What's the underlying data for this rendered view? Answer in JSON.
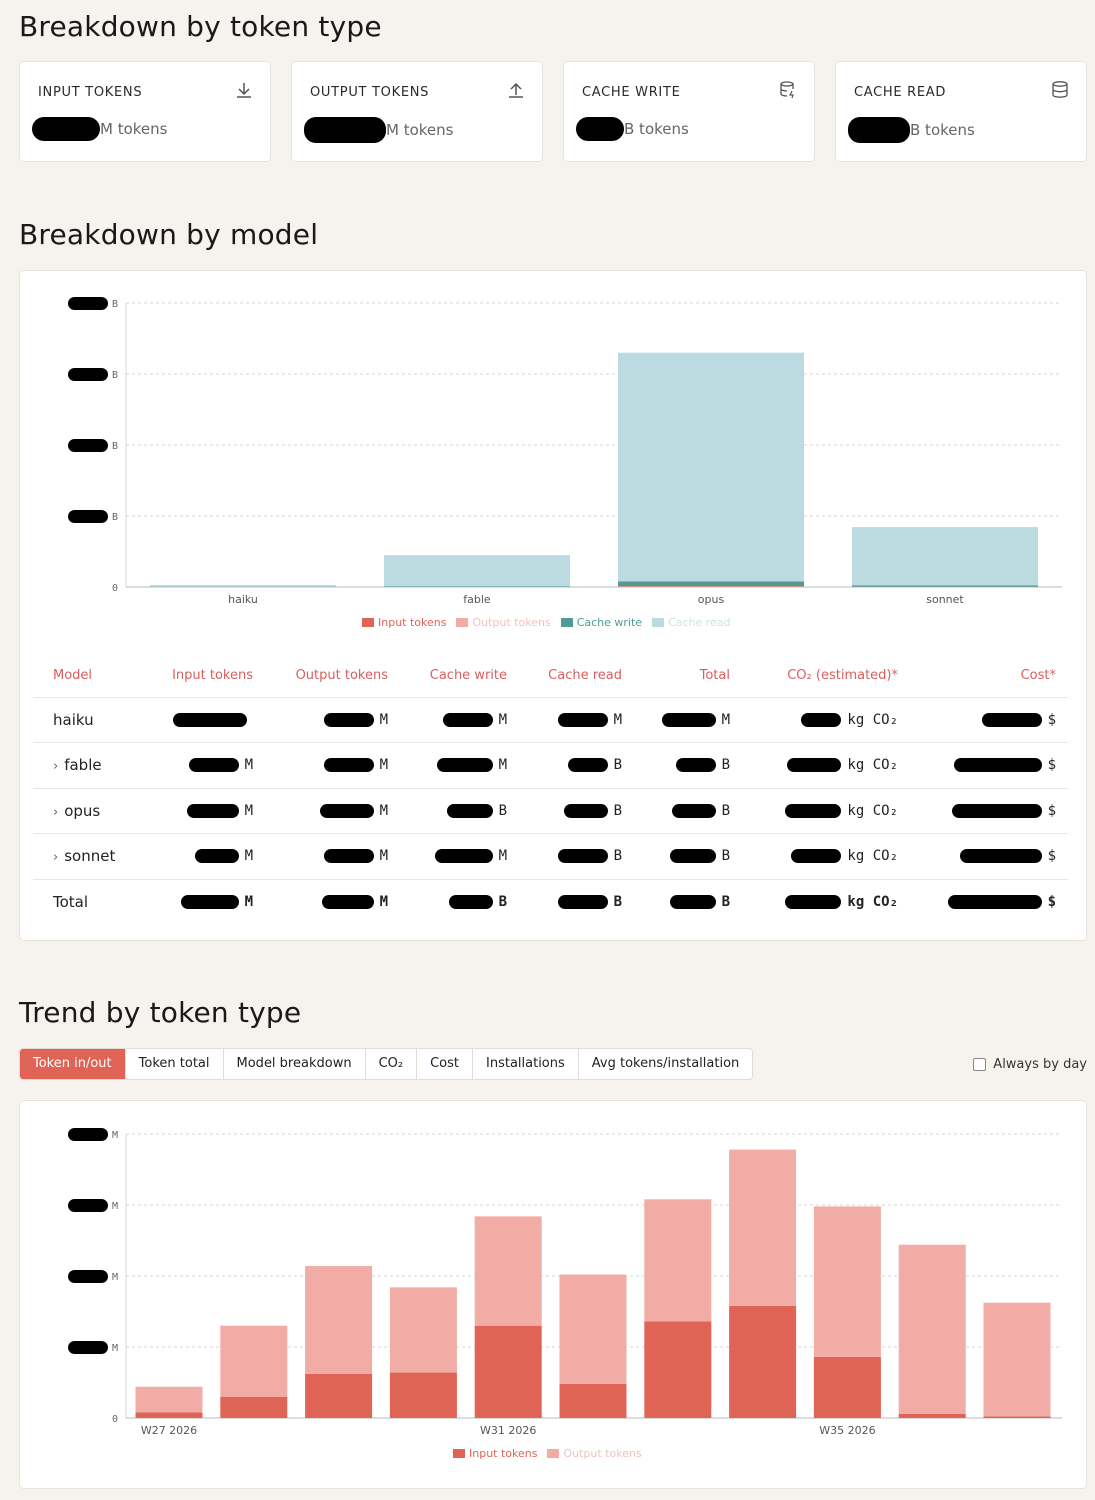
{
  "token_section": {
    "title": "Breakdown by token type",
    "cards": [
      {
        "label": "INPUT TOKENS",
        "unit": "M tokens",
        "icon": "download-icon"
      },
      {
        "label": "OUTPUT TOKENS",
        "unit": "M tokens",
        "icon": "upload-icon"
      },
      {
        "label": "CACHE WRITE",
        "unit": "B tokens",
        "icon": "database-write-icon"
      },
      {
        "label": "CACHE READ",
        "unit": "B tokens",
        "icon": "database-icon"
      }
    ]
  },
  "model_section": {
    "title": "Breakdown by model",
    "chart_data": {
      "type": "bar",
      "stacked": true,
      "categories": [
        "haiku",
        "fable",
        "opus",
        "sonnet"
      ],
      "y_ticks": [
        "B",
        "B",
        "B",
        "B",
        "0"
      ],
      "ylim": [
        0,
        1
      ],
      "grid": true,
      "legend_position": "bottom",
      "series": [
        {
          "name": "Input tokens",
          "color": "#e06456",
          "values": [
            0,
            0,
            0.0015,
            0.0005
          ]
        },
        {
          "name": "Output tokens",
          "color": "#f2aca6",
          "values": [
            0,
            0,
            0.0015,
            0.0005
          ]
        },
        {
          "name": "Cache write",
          "color": "#4e9c95",
          "values": [
            0.001,
            0.002,
            0.017,
            0.005
          ]
        },
        {
          "name": "Cache read",
          "color": "#bcdbe0",
          "values": [
            0.006,
            0.11,
            0.805,
            0.205
          ]
        }
      ]
    },
    "table": {
      "headers": [
        "Model",
        "Input tokens",
        "Output tokens",
        "Cache write",
        "Cache read",
        "Total",
        "CO₂ (estimated)*",
        "Cost*"
      ],
      "rows": [
        {
          "name": "haiku",
          "expandable": false,
          "units": [
            "",
            "M",
            "M",
            "M",
            "M",
            "kg CO₂",
            "$"
          ]
        },
        {
          "name": "fable",
          "expandable": true,
          "units": [
            "M",
            "M",
            "M",
            "B",
            "B",
            "kg CO₂",
            "$"
          ]
        },
        {
          "name": "opus",
          "expandable": true,
          "units": [
            "M",
            "M",
            "B",
            "B",
            "B",
            "kg CO₂",
            "$"
          ]
        },
        {
          "name": "sonnet",
          "expandable": true,
          "units": [
            "M",
            "M",
            "M",
            "B",
            "B",
            "kg CO₂",
            "$"
          ]
        }
      ],
      "total": {
        "name": "Total",
        "units": [
          "M",
          "M",
          "B",
          "B",
          "B",
          "kg CO₂",
          "$"
        ]
      }
    }
  },
  "trend_section": {
    "title": "Trend by token type",
    "tabs": [
      "Token in/out",
      "Token total",
      "Model breakdown",
      "CO₂",
      "Cost",
      "Installations",
      "Avg tokens/installation"
    ],
    "active_tab": "Token in/out",
    "always_by_day": "Always by day",
    "chart_data": {
      "type": "bar",
      "stacked": true,
      "x_labels": [
        "W27 2026",
        "W31 2026",
        "W35 2026"
      ],
      "x_label_positions": [
        0,
        4,
        8
      ],
      "y_ticks": [
        "M",
        "M",
        "M",
        "M",
        "0"
      ],
      "ylim": [
        0,
        1
      ],
      "grid": true,
      "legend_position": "bottom",
      "series": [
        {
          "name": "Input tokens",
          "color": "#e06456",
          "values": [
            0.02,
            0.075,
            0.155,
            0.16,
            0.325,
            0.12,
            0.34,
            0.395,
            0.215,
            0.015,
            0.006
          ]
        },
        {
          "name": "Output tokens",
          "color": "#f2aca6",
          "values": [
            0.09,
            0.25,
            0.38,
            0.3,
            0.385,
            0.385,
            0.43,
            0.55,
            0.53,
            0.595,
            0.4
          ]
        }
      ]
    }
  }
}
